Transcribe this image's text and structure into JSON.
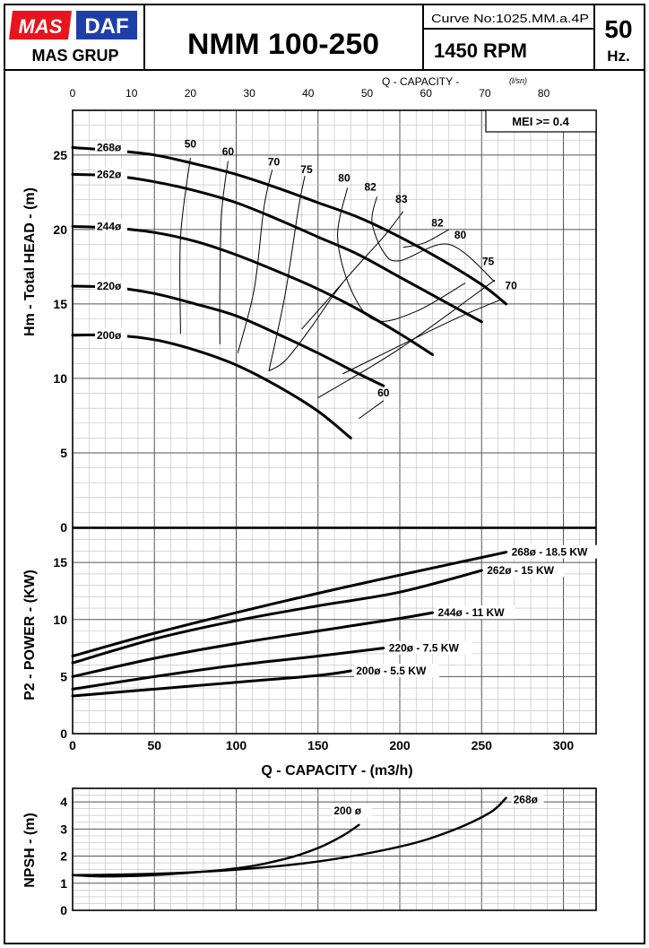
{
  "header": {
    "brand_mas": "MAS",
    "brand_daf": "DAF",
    "brand_group": "MAS GRUP",
    "model": "NMM 100-250",
    "curve_no": "Curve No:1025.MM.a.4P",
    "rpm": "1450 RPM",
    "hz_value": "50",
    "hz_unit": "Hz."
  },
  "colors": {
    "brand_red": "#e8141e",
    "brand_blue": "#1f3fa8",
    "grid_minor": "#bdbdbd",
    "grid_major": "#555555",
    "curve": "#000000"
  },
  "chart_data": [
    {
      "type": "line",
      "title": "Total HEAD",
      "ylabel": "Hm - Total HEAD - (m)",
      "xlabel_top": "Q - CAPACITY -",
      "xunit_top": "(l/sn)",
      "xlim": [
        0,
        320
      ],
      "ylim": [
        0,
        28
      ],
      "x_ticks": [
        0,
        50,
        100,
        150,
        200,
        250,
        300
      ],
      "x_ticks_top": [
        0,
        10,
        20,
        30,
        40,
        50,
        60,
        70,
        80
      ],
      "y_ticks": [
        0,
        5,
        10,
        15,
        20,
        25
      ],
      "mei_label": "MEI >= 0.4",
      "series": [
        {
          "name": "268ø",
          "x": [
            0,
            25,
            50,
            75,
            100,
            125,
            150,
            175,
            200,
            225,
            250,
            265
          ],
          "y": [
            25.5,
            25.3,
            25.0,
            24.4,
            23.7,
            22.8,
            21.8,
            20.8,
            19.5,
            18.0,
            16.3,
            15.0
          ]
        },
        {
          "name": "262ø",
          "x": [
            0,
            25,
            50,
            75,
            100,
            125,
            150,
            175,
            200,
            225,
            250
          ],
          "y": [
            23.7,
            23.6,
            23.2,
            22.6,
            21.8,
            20.7,
            19.5,
            18.3,
            16.8,
            15.3,
            13.8
          ]
        },
        {
          "name": "244ø",
          "x": [
            0,
            25,
            50,
            75,
            100,
            125,
            150,
            175,
            200,
            220
          ],
          "y": [
            20.2,
            20.1,
            19.8,
            19.2,
            18.3,
            17.2,
            16.0,
            14.6,
            13.0,
            11.6
          ]
        },
        {
          "name": "220ø",
          "x": [
            0,
            25,
            50,
            75,
            100,
            125,
            150,
            175,
            190
          ],
          "y": [
            16.2,
            16.1,
            15.7,
            15.0,
            14.2,
            13.0,
            11.7,
            10.3,
            9.5
          ]
        },
        {
          "name": "200ø",
          "x": [
            0,
            25,
            50,
            75,
            100,
            125,
            150,
            170
          ],
          "y": [
            12.9,
            12.9,
            12.6,
            11.9,
            10.9,
            9.5,
            7.8,
            6.0
          ]
        }
      ],
      "efficiency_labels": [
        {
          "label": "50",
          "x": 72,
          "y": 25.5
        },
        {
          "label": "60",
          "x": 95,
          "y": 25.0
        },
        {
          "label": "70",
          "x": 123,
          "y": 24.3
        },
        {
          "label": "75",
          "x": 143,
          "y": 23.8
        },
        {
          "label": "80",
          "x": 166,
          "y": 23.2
        },
        {
          "label": "82",
          "x": 182,
          "y": 22.6
        },
        {
          "label": "83",
          "x": 201,
          "y": 21.8
        },
        {
          "label": "82",
          "x": 223,
          "y": 20.2
        },
        {
          "label": "80",
          "x": 237,
          "y": 19.4
        },
        {
          "label": "75",
          "x": 254,
          "y": 17.6
        },
        {
          "label": "70",
          "x": 268,
          "y": 16.0
        },
        {
          "label": "60",
          "x": 190,
          "y": 8.8
        }
      ],
      "iso_efficiency": [
        {
          "x": [
            72,
            66,
            66
          ],
          "y": [
            24.8,
            19.5,
            13.0
          ]
        },
        {
          "x": [
            95,
            91,
            90,
            90
          ],
          "y": [
            24.6,
            21.0,
            16.0,
            12.3
          ]
        },
        {
          "x": [
            122,
            117,
            111,
            101
          ],
          "y": [
            24.0,
            21.5,
            16.0,
            11.7
          ]
        },
        {
          "x": [
            142,
            138,
            130,
            120
          ],
          "y": [
            23.6,
            21.4,
            15.7,
            10.5
          ]
        },
        {
          "x": [
            168,
            162,
            170,
            185,
            210,
            240
          ],
          "y": [
            22.8,
            19.5,
            16.0,
            13.9,
            14.5,
            16.4
          ]
        },
        {
          "x": [
            186,
            183,
            190,
            200,
            230,
            258
          ],
          "y": [
            22.2,
            20.5,
            18.5,
            17.9,
            19.0,
            16.5
          ]
        },
        {
          "x": [
            202,
            190,
            165,
            145,
            130,
            120
          ],
          "y": [
            21.2,
            19.5,
            16.4,
            13.3,
            11.2,
            10.5
          ]
        },
        {
          "x": [
            202,
            215,
            230
          ],
          "y": [
            18.8,
            19.1,
            20.0
          ]
        },
        {
          "x": [
            165,
            140
          ],
          "y": [
            16.4,
            13.3
          ]
        },
        {
          "x": [
            150,
            200,
            258
          ],
          "y": [
            8.7,
            12.0,
            16.6
          ]
        },
        {
          "x": [
            165,
            230,
            262
          ],
          "y": [
            10.3,
            13.8,
            15.3
          ]
        },
        {
          "x": [
            175,
            190
          ],
          "y": [
            7.3,
            8.5
          ]
        }
      ]
    },
    {
      "type": "line",
      "title": "Power",
      "ylabel": "P2 - POWER - (KW)",
      "xlabel": "Q - CAPACITY - (m3/h)",
      "xlim": [
        0,
        320
      ],
      "ylim": [
        0,
        18
      ],
      "y_ticks": [
        0,
        5,
        10,
        15
      ],
      "x_ticks": [
        0,
        50,
        100,
        150,
        200,
        250,
        300
      ],
      "series": [
        {
          "name": "268ø - 18.5 KW",
          "x": [
            0,
            50,
            100,
            150,
            200,
            265
          ],
          "y": [
            6.8,
            8.8,
            10.6,
            12.3,
            13.9,
            15.9
          ]
        },
        {
          "name": "262ø - 15 KW",
          "x": [
            0,
            50,
            100,
            150,
            200,
            250
          ],
          "y": [
            6.2,
            8.3,
            9.9,
            11.2,
            12.4,
            14.3
          ]
        },
        {
          "name": "244ø - 11 KW",
          "x": [
            0,
            50,
            100,
            150,
            200,
            220
          ],
          "y": [
            5.0,
            6.6,
            7.9,
            9.0,
            10.1,
            10.6
          ]
        },
        {
          "name": "220ø - 7.5 KW",
          "x": [
            0,
            50,
            100,
            150,
            190
          ],
          "y": [
            3.9,
            5.0,
            6.0,
            6.8,
            7.5
          ]
        },
        {
          "name": "200ø - 5.5 KW",
          "x": [
            0,
            50,
            100,
            150,
            170
          ],
          "y": [
            3.3,
            3.9,
            4.5,
            5.1,
            5.5
          ]
        }
      ]
    },
    {
      "type": "line",
      "title": "NPSH",
      "ylabel": "NPSH - (m)",
      "xlim": [
        0,
        320
      ],
      "ylim": [
        0,
        4.5
      ],
      "y_ticks": [
        0,
        1,
        2,
        3,
        4
      ],
      "series": [
        {
          "name": "200 ø",
          "x": [
            0,
            20,
            50,
            100,
            130,
            150,
            165,
            175
          ],
          "y": [
            1.3,
            1.25,
            1.3,
            1.55,
            1.9,
            2.3,
            2.75,
            3.15
          ]
        },
        {
          "name": "268ø",
          "x": [
            0,
            50,
            100,
            150,
            200,
            230,
            255,
            265
          ],
          "y": [
            1.3,
            1.35,
            1.5,
            1.8,
            2.35,
            2.9,
            3.6,
            4.15
          ]
        }
      ]
    }
  ]
}
